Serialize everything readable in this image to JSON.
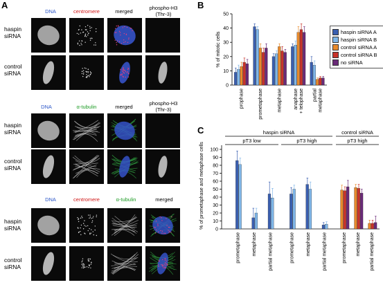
{
  "panel_a": {
    "letter": "A",
    "row_labels": {
      "haspin_1": "haspin",
      "haspin_2": "siRNA",
      "control_1": "control",
      "control_2": "siRNA"
    },
    "block1": {
      "dna": "DNA",
      "centromere": "centromere",
      "merged": "merged",
      "ph3_1": "phospho-H3",
      "ph3_2": "(Thr-3)"
    },
    "block2": {
      "dna": "DNA",
      "tubulin": "α-tubulin",
      "merged": "merged",
      "ph3_1": "phospho-H3",
      "ph3_2": "(Thr-3)"
    },
    "block3": {
      "dna": "DNA",
      "centromere": "centromere",
      "tubulin": "α-tubulin",
      "merged": "merged"
    }
  },
  "panel_b": {
    "letter": "B",
    "legend": [
      {
        "name": "haspin siRNA A",
        "color": "#3a5fb0"
      },
      {
        "name": "haspin siRNA B",
        "color": "#7fb6e8"
      },
      {
        "name": "control siRNA A",
        "color": "#e88a2c"
      },
      {
        "name": "control siRNA B",
        "color": "#c8332a"
      },
      {
        "name": "no siRNA",
        "color": "#6a2a78"
      }
    ]
  },
  "panel_c": {
    "letter": "C",
    "group_haspin": "haspin siRNA",
    "group_control": "control siRNA",
    "sub_low": "pT3 low",
    "sub_high_1": "pT3 high",
    "sub_high_2": "pT3 high"
  },
  "chart_data": [
    {
      "type": "bar",
      "ylabel": "% of mitotic cells",
      "ylim": [
        0,
        50
      ],
      "yticks": [
        0,
        10,
        20,
        30,
        40,
        50
      ],
      "categories": [
        "prophase",
        "prometaphase",
        "metaphase",
        "anaphase + telophase",
        "partial metaphase"
      ],
      "category_lines": [
        [
          "prophase"
        ],
        [
          "prometaphase"
        ],
        [
          "metaphase"
        ],
        [
          "anaphase",
          "+ telophase"
        ],
        [
          "partial",
          "metaphase"
        ]
      ],
      "series": [
        {
          "name": "haspin siRNA A",
          "values": [
            9,
            41,
            20,
            27,
            16
          ],
          "errors": [
            3,
            2,
            2,
            2,
            4
          ]
        },
        {
          "name": "haspin siRNA B",
          "values": [
            11,
            39,
            22,
            28,
            14
          ],
          "errors": [
            3,
            2,
            2,
            3,
            3
          ]
        },
        {
          "name": "control siRNA A",
          "values": [
            13,
            26,
            27,
            37,
            4
          ],
          "errors": [
            3,
            3,
            2,
            4,
            1
          ]
        },
        {
          "name": "control siRNA B",
          "values": [
            16,
            23,
            24,
            39,
            5
          ],
          "errors": [
            3,
            3,
            3,
            4,
            1
          ]
        },
        {
          "name": "no siRNA",
          "values": [
            15,
            26,
            23,
            37,
            5
          ],
          "errors": [
            3,
            3,
            2,
            4,
            1
          ]
        }
      ]
    },
    {
      "type": "bar",
      "ylabel": "% of prometaphase and metaphase cells",
      "ylim": [
        0,
        100
      ],
      "yticks": [
        0,
        10,
        20,
        30,
        40,
        50,
        60,
        70,
        80,
        90,
        100
      ],
      "categories": [
        "prometaphase",
        "metaphase",
        "partial metaphase"
      ],
      "groups": [
        {
          "name": "haspin siRNA · pT3 low",
          "series": [
            {
              "name": "haspin siRNA A",
              "values": [
                86,
                14,
                44
              ],
              "errors": [
                12,
                12,
                15
              ]
            },
            {
              "name": "haspin siRNA B",
              "values": [
                81,
                20,
                39
              ],
              "errors": [
                8,
                6,
                12
              ]
            }
          ]
        },
        {
          "name": "haspin siRNA · pT3 high",
          "series": [
            {
              "name": "haspin siRNA A",
              "values": [
                44,
                56,
                5
              ],
              "errors": [
                8,
                8,
                3
              ]
            },
            {
              "name": "haspin siRNA B",
              "values": [
                50,
                50,
                6
              ],
              "errors": [
                5,
                9,
                3
              ]
            }
          ]
        },
        {
          "name": "control siRNA · pT3 high",
          "series": [
            {
              "name": "control siRNA A",
              "values": [
                49,
                52,
                7
              ],
              "errors": [
                6,
                4,
                4
              ]
            },
            {
              "name": "control siRNA B",
              "values": [
                48,
                51,
                7
              ],
              "errors": [
                5,
                5,
                4
              ]
            },
            {
              "name": "no siRNA",
              "values": [
                53,
                45,
                8
              ],
              "errors": [
                8,
                5,
                8
              ]
            }
          ]
        }
      ]
    }
  ]
}
